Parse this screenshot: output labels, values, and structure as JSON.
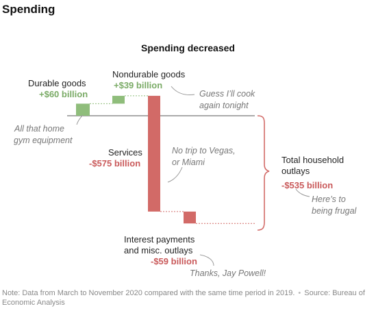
{
  "header": {
    "title": "Spending"
  },
  "chart_data": {
    "type": "waterfall",
    "title": "Spending decreased",
    "unit": "billion $",
    "colors": {
      "increase": "#8fbd7b",
      "decrease": "#d26a67",
      "increase_text": "#7aab66",
      "decrease_text": "#c9595a"
    },
    "categories": [
      "Durable goods",
      "Nondurable goods",
      "Services",
      "Interest payments and misc. outlays"
    ],
    "values": [
      60,
      39,
      -575,
      -59
    ],
    "value_labels": [
      "+$60 billion",
      "+$39 billion",
      "-$575 billion",
      "-$59 billion"
    ],
    "total": {
      "label": "Total household outlays",
      "value": -535,
      "value_label": "-$535 billion"
    },
    "annotations": [
      "All that home gym equipment",
      "Guess I'll cook again tonight",
      "No trip to Vegas, or Miami",
      "Here's to being frugal",
      "Thanks, Jay Powell!"
    ]
  },
  "labels": {
    "durable": "Durable goods",
    "nondurable": "Nondurable goods",
    "services": "Services",
    "interest_1": "Interest payments",
    "interest_2": "and misc. outlays",
    "total_1": "Total household",
    "total_2": "outlays"
  },
  "annotations": {
    "gym_1": "All that home",
    "gym_2": "gym equipment",
    "cook_1": "Guess I’ll cook",
    "cook_2": "again tonight",
    "vegas_1": "No trip to Vegas,",
    "vegas_2": "or Miami",
    "frugal_1": "Here’s to",
    "frugal_2": "being frugal",
    "powell": "Thanks, Jay Powell!"
  },
  "footer": {
    "note": "Note: Data from March to November 2020 compared with the same time period in 2019.",
    "source": "Source: Bureau of Economic Analysis"
  }
}
